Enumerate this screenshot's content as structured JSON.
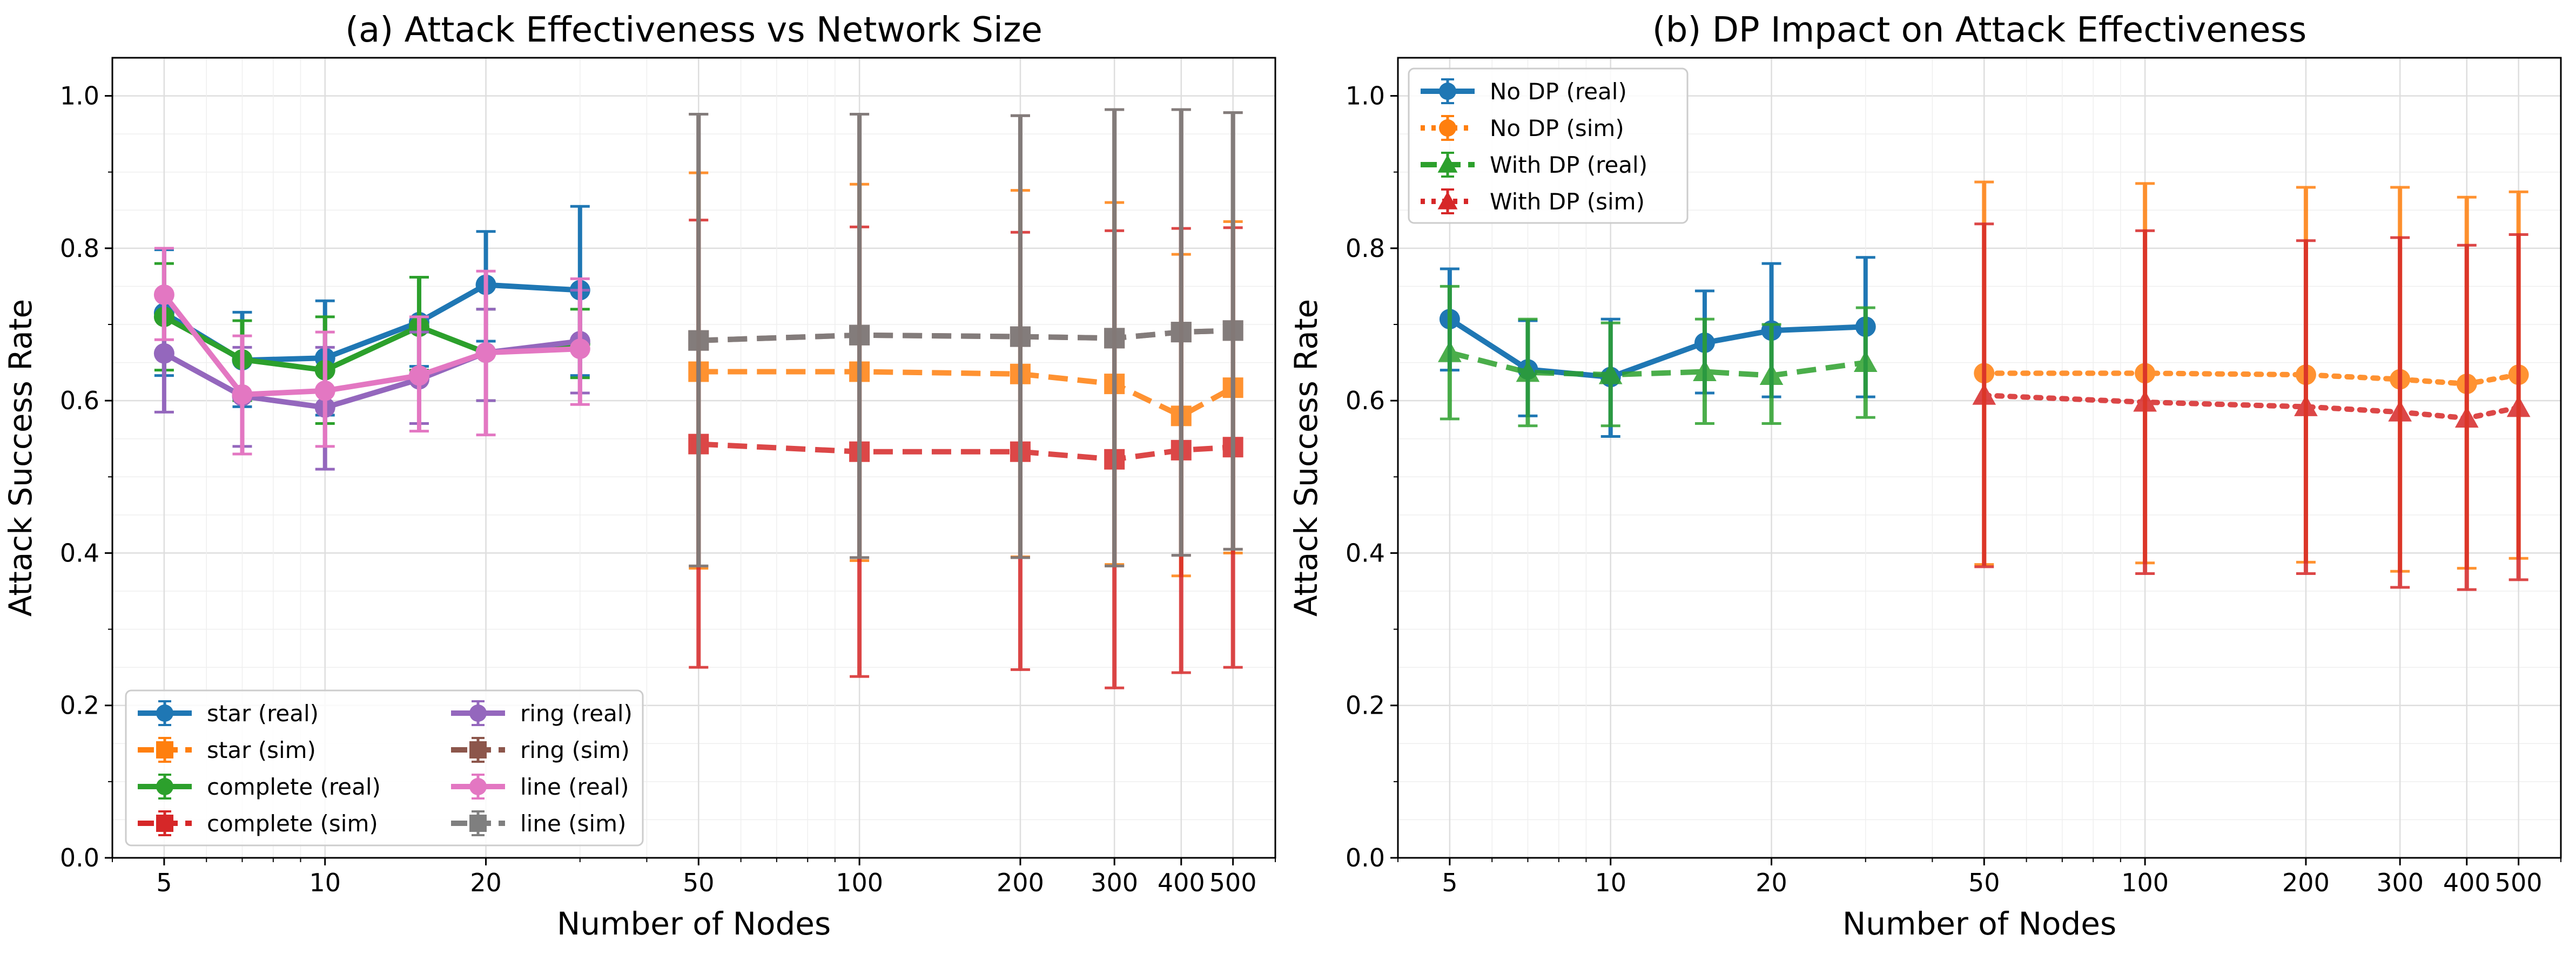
{
  "chart_data": [
    {
      "type": "line",
      "title": "(a) Attack Effectiveness vs Network Size",
      "xlabel": "Number of Nodes",
      "ylabel": "Attack Success Rate",
      "xscale": "log",
      "xlim": [
        4,
        600
      ],
      "ylim": [
        0.0,
        1.05
      ],
      "xticks": [
        5,
        10,
        20,
        50,
        100,
        200,
        300,
        400,
        500
      ],
      "yticks": [
        0.0,
        0.2,
        0.4,
        0.6,
        0.8,
        1.0
      ],
      "grid": true,
      "legend_position": "lower-left",
      "legend_columns": 2,
      "series": [
        {
          "name": "star (real)",
          "color": "#1f77b4",
          "marker": "circle",
          "style": "solid",
          "x": [
            5,
            7,
            10,
            15,
            20,
            30
          ],
          "y": [
            0.715,
            0.653,
            0.656,
            0.703,
            0.752,
            0.745
          ],
          "err_low": [
            0.633,
            0.592,
            0.581,
            0.645,
            0.678,
            0.633
          ],
          "err_high": [
            0.798,
            0.716,
            0.731,
            0.762,
            0.822,
            0.855
          ]
        },
        {
          "name": "star (sim)",
          "color": "#ff7f0e",
          "marker": "square",
          "style": "dashed",
          "x": [
            50,
            100,
            200,
            300,
            400,
            500
          ],
          "y": [
            0.638,
            0.638,
            0.635,
            0.622,
            0.58,
            0.617
          ],
          "err_low": [
            0.38,
            0.39,
            0.395,
            0.385,
            0.37,
            0.4
          ],
          "err_high": [
            0.899,
            0.884,
            0.876,
            0.86,
            0.792,
            0.835
          ]
        },
        {
          "name": "complete (real)",
          "color": "#2ca02c",
          "marker": "circle",
          "style": "solid",
          "x": [
            5,
            7,
            10,
            15,
            20,
            30
          ],
          "y": [
            0.71,
            0.654,
            0.64,
            0.697,
            0.663,
            0.675
          ],
          "err_low": [
            0.64,
            0.6,
            0.57,
            0.64,
            0.6,
            0.63
          ],
          "err_high": [
            0.78,
            0.705,
            0.71,
            0.762,
            0.72,
            0.72
          ]
        },
        {
          "name": "complete (sim)",
          "color": "#d62728",
          "marker": "square",
          "style": "dashed",
          "x": [
            50,
            100,
            200,
            300,
            400,
            500
          ],
          "y": [
            0.543,
            0.533,
            0.533,
            0.523,
            0.535,
            0.539
          ],
          "err_low": [
            0.25,
            0.238,
            0.247,
            0.223,
            0.243,
            0.25
          ],
          "err_high": [
            0.837,
            0.828,
            0.821,
            0.823,
            0.826,
            0.827
          ]
        },
        {
          "name": "ring (real)",
          "color": "#9467bd",
          "marker": "circle",
          "style": "solid",
          "x": [
            5,
            7,
            10,
            15,
            20,
            30
          ],
          "y": [
            0.662,
            0.606,
            0.591,
            0.628,
            0.663,
            0.678
          ],
          "err_low": [
            0.585,
            0.54,
            0.51,
            0.57,
            0.6,
            0.61
          ],
          "err_high": [
            0.74,
            0.67,
            0.67,
            0.69,
            0.72,
            0.745
          ]
        },
        {
          "name": "ring (sim)",
          "color": "#8c564b",
          "marker": "square",
          "style": "dashed",
          "x": [
            50,
            100,
            200,
            300,
            400,
            500
          ],
          "y": [
            0.679,
            0.686,
            0.684,
            0.682,
            0.69,
            0.692
          ],
          "err_low": [
            0.383,
            0.394,
            0.394,
            0.383,
            0.397,
            0.405
          ],
          "err_high": [
            0.976,
            0.976,
            0.974,
            0.982,
            0.982,
            0.978
          ]
        },
        {
          "name": "line (real)",
          "color": "#e377c2",
          "marker": "circle",
          "style": "solid",
          "x": [
            5,
            7,
            10,
            15,
            20,
            30
          ],
          "y": [
            0.739,
            0.608,
            0.613,
            0.633,
            0.663,
            0.668
          ],
          "err_low": [
            0.68,
            0.53,
            0.54,
            0.56,
            0.555,
            0.595
          ],
          "err_high": [
            0.8,
            0.685,
            0.69,
            0.71,
            0.77,
            0.76
          ]
        },
        {
          "name": "line (sim)",
          "color": "#7f7f7f",
          "marker": "square",
          "style": "dashed",
          "x": [
            50,
            100,
            200,
            300,
            400,
            500
          ],
          "y": [
            0.679,
            0.686,
            0.684,
            0.682,
            0.69,
            0.692
          ],
          "err_low": [
            0.383,
            0.394,
            0.394,
            0.383,
            0.397,
            0.405
          ],
          "err_high": [
            0.976,
            0.976,
            0.974,
            0.982,
            0.982,
            0.978
          ]
        }
      ]
    },
    {
      "type": "line",
      "title": "(b) DP Impact on Attack Effectiveness",
      "xlabel": "Number of Nodes",
      "ylabel": "Attack Success Rate",
      "xscale": "log",
      "xlim": [
        4,
        600
      ],
      "ylim": [
        0.0,
        1.05
      ],
      "xticks": [
        5,
        10,
        20,
        50,
        100,
        200,
        300,
        400,
        500
      ],
      "yticks": [
        0.0,
        0.2,
        0.4,
        0.6,
        0.8,
        1.0
      ],
      "grid": true,
      "legend_position": "top-left",
      "legend_columns": 1,
      "series": [
        {
          "name": "No DP (real)",
          "color": "#1f77b4",
          "marker": "circle",
          "style": "solid",
          "x": [
            5,
            7,
            10,
            15,
            20,
            30
          ],
          "y": [
            0.707,
            0.641,
            0.631,
            0.676,
            0.692,
            0.697
          ],
          "err_low": [
            0.64,
            0.58,
            0.553,
            0.61,
            0.605,
            0.605
          ],
          "err_high": [
            0.773,
            0.705,
            0.707,
            0.744,
            0.78,
            0.788
          ]
        },
        {
          "name": "No DP (sim)",
          "color": "#ff7f0e",
          "marker": "circle",
          "style": "dotted",
          "x": [
            50,
            100,
            200,
            300,
            400,
            500
          ],
          "y": [
            0.636,
            0.636,
            0.634,
            0.628,
            0.622,
            0.634
          ],
          "err_low": [
            0.385,
            0.387,
            0.388,
            0.376,
            0.38,
            0.393
          ],
          "err_high": [
            0.887,
            0.885,
            0.88,
            0.88,
            0.867,
            0.874
          ]
        },
        {
          "name": "With DP (real)",
          "color": "#2ca02c",
          "marker": "triangle",
          "style": "dashed",
          "x": [
            5,
            7,
            10,
            15,
            20,
            30
          ],
          "y": [
            0.663,
            0.637,
            0.634,
            0.638,
            0.633,
            0.65
          ],
          "err_low": [
            0.576,
            0.567,
            0.567,
            0.57,
            0.57,
            0.578
          ],
          "err_high": [
            0.75,
            0.707,
            0.702,
            0.707,
            0.7,
            0.722
          ]
        },
        {
          "name": "With DP (sim)",
          "color": "#d62728",
          "marker": "triangle",
          "style": "dotted",
          "x": [
            50,
            100,
            200,
            300,
            400,
            500
          ],
          "y": [
            0.607,
            0.598,
            0.592,
            0.585,
            0.577,
            0.591
          ],
          "err_low": [
            0.382,
            0.373,
            0.373,
            0.355,
            0.352,
            0.365
          ],
          "err_high": [
            0.832,
            0.823,
            0.81,
            0.814,
            0.804,
            0.818
          ]
        }
      ]
    }
  ]
}
